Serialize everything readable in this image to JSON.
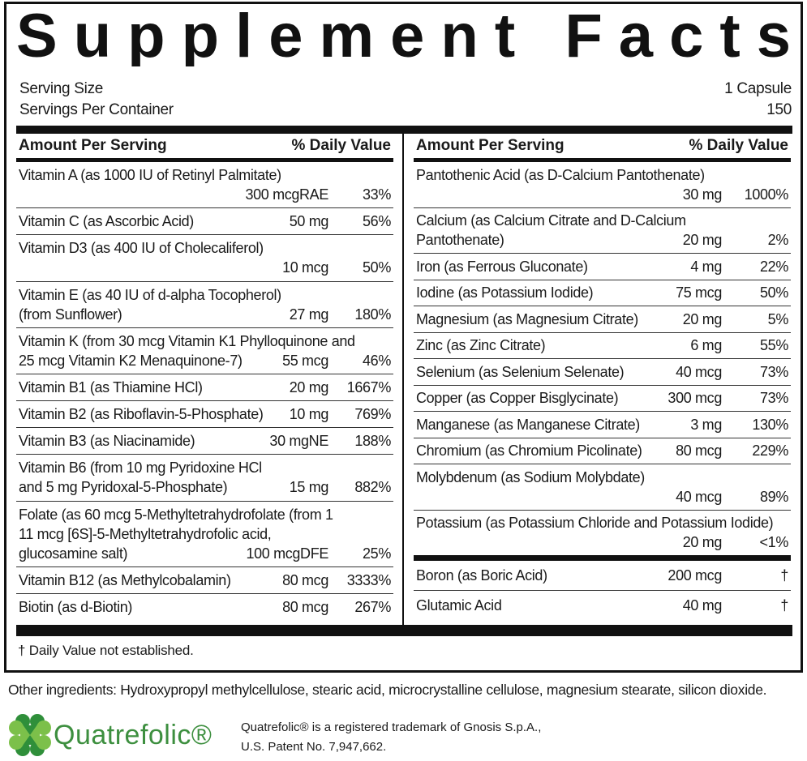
{
  "title": "Supplement Facts",
  "serving_size": {
    "label": "Serving Size",
    "value": "1 Capsule"
  },
  "servings_per_container": {
    "label": "Servings Per Container",
    "value": "150"
  },
  "left": {
    "header": {
      "amount": "Amount Per Serving",
      "daily_value": "% Daily Value"
    },
    "rows": [
      {
        "name": [
          "Vitamin A (as 1000 IU of Retinyl Palmitate)"
        ],
        "amount": "300 mcgRAE",
        "dv": "33%"
      },
      {
        "name": [
          "Vitamin C (as Ascorbic Acid)"
        ],
        "amount": "50 mg",
        "dv": "56%"
      },
      {
        "name": [
          "Vitamin D3 (as 400 IU of Cholecaliferol)"
        ],
        "amount": "10 mcg",
        "dv": "50%"
      },
      {
        "name": [
          "Vitamin E (as 40 IU of d-alpha Tocopherol)",
          "(from Sunflower)"
        ],
        "amount": "27 mg",
        "dv": "180%"
      },
      {
        "name": [
          "Vitamin K (from 30 mcg Vitamin K1 Phylloquinone and",
          "25 mcg Vitamin K2 Menaquinone-7)"
        ],
        "amount": "55 mcg",
        "dv": "46%"
      },
      {
        "name": [
          "Vitamin B1 (as Thiamine HCl)"
        ],
        "amount": "20 mg",
        "dv": "1667%"
      },
      {
        "name": [
          "Vitamin B2 (as Riboflavin-5-Phosphate)"
        ],
        "amount": "10 mg",
        "dv": "769%"
      },
      {
        "name": [
          "Vitamin B3 (as Niacinamide)"
        ],
        "amount": "30 mgNE",
        "dv": "188%"
      },
      {
        "name": [
          "Vitamin B6 (from 10 mg Pyridoxine HCl",
          "and 5 mg Pyridoxal-5-Phosphate)"
        ],
        "amount": "15 mg",
        "dv": "882%"
      },
      {
        "name": [
          "Folate (as 60 mcg 5-Methyltetrahydrofolate (from 1",
          "11 mcg [6S]-5-Methyltetrahydrofolic acid,",
          "glucosamine salt)"
        ],
        "amount": "100 mcgDFE",
        "dv": "25%"
      },
      {
        "name": [
          "Vitamin B12 (as Methylcobalamin)"
        ],
        "amount": "80 mcg",
        "dv": "3333%"
      },
      {
        "name": [
          "Biotin (as d-Biotin)"
        ],
        "amount": "80 mcg",
        "dv": "267%"
      }
    ]
  },
  "right": {
    "header": {
      "amount": "Amount Per Serving",
      "daily_value": "% Daily Value"
    },
    "rows": [
      {
        "name": [
          "Pantothenic Acid (as D-Calcium Pantothenate)"
        ],
        "amount": "30 mg",
        "dv": "1000%"
      },
      {
        "name": [
          "Calcium (as Calcium Citrate and D-Calcium",
          "Pantothenate)"
        ],
        "amount": "20 mg",
        "dv": "2%"
      },
      {
        "name": [
          "Iron (as Ferrous Gluconate)"
        ],
        "amount": "4 mg",
        "dv": "22%"
      },
      {
        "name": [
          "Iodine (as Potassium Iodide)"
        ],
        "amount": "75 mcg",
        "dv": "50%"
      },
      {
        "name": [
          "Magnesium (as Magnesium Citrate)"
        ],
        "amount": "20 mg",
        "dv": "5%"
      },
      {
        "name": [
          "Zinc (as Zinc Citrate)"
        ],
        "amount": "6 mg",
        "dv": "55%"
      },
      {
        "name": [
          "Selenium (as Selenium Selenate)"
        ],
        "amount": "40 mcg",
        "dv": "73%"
      },
      {
        "name": [
          "Copper (as Copper Bisglycinate)"
        ],
        "amount": "300 mcg",
        "dv": "73%"
      },
      {
        "name": [
          "Manganese (as Manganese Citrate)"
        ],
        "amount": "3 mg",
        "dv": "130%"
      },
      {
        "name": [
          "Chromium (as Chromium Picolinate)"
        ],
        "amount": "80 mcg",
        "dv": "229%"
      },
      {
        "name": [
          "Molybdenum (as Sodium Molybdate)"
        ],
        "amount": "40 mcg",
        "dv": "89%"
      },
      {
        "name": [
          "Potassium (as Potassium Chloride and Potassium Iodide)"
        ],
        "amount": "20 mg",
        "dv": "<1%"
      }
    ],
    "extra_rows": [
      {
        "name": [
          "Boron (as Boric Acid)"
        ],
        "amount": "200 mcg",
        "dv": "†"
      },
      {
        "name": [
          "Glutamic Acid"
        ],
        "amount": "40 mg",
        "dv": "†"
      }
    ]
  },
  "footnote": "† Daily Value not established.",
  "other_ingredients": "Other ingredients: Hydroxypropyl methylcellulose, stearic acid, microcrystalline cellulose, magnesium stearate, silicon dioxide.",
  "brand": "Quatrefolic®",
  "trademark": [
    "Quatrefolic® is a registered trademark of Gnosis S.p.A.,",
    "U.S. Patent No. 7,947,662."
  ]
}
